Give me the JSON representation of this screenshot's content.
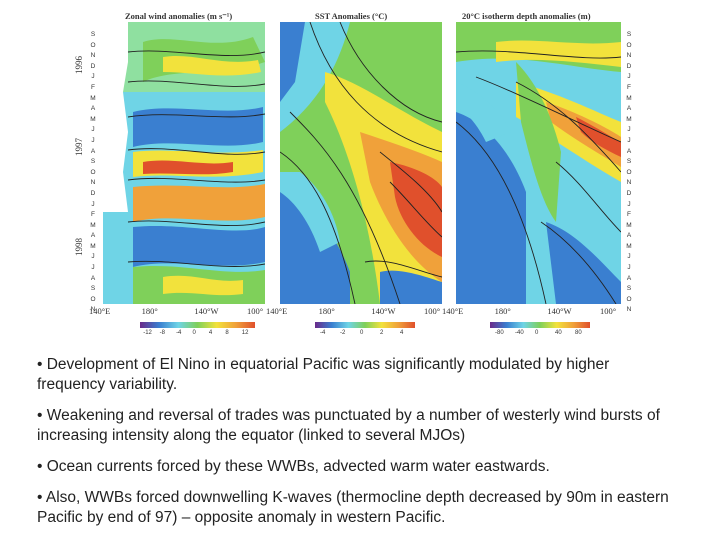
{
  "panels": [
    {
      "title": "Zonal wind anomalies (m s⁻¹)",
      "xticks": [
        "140°E",
        "180°",
        "140°W",
        "100°"
      ],
      "colorbar": [
        "-12",
        "-8",
        "-4",
        "0",
        "4",
        "8",
        "12"
      ]
    },
    {
      "title": "SST Anomalies (°C)",
      "xticks": [
        "140°E",
        "180°",
        "140°W",
        "100°"
      ],
      "colorbar": [
        "-4",
        "-2",
        "0",
        "2",
        "4"
      ]
    },
    {
      "title": "20°C isotherm depth anomalies (m)",
      "xticks": [
        "140°E",
        "180°",
        "140°W",
        "100°"
      ],
      "colorbar": [
        "-80",
        "-40",
        "0",
        "40",
        "80"
      ]
    }
  ],
  "years": [
    "1996",
    "1997",
    "1998"
  ],
  "months": [
    "S",
    "O",
    "N",
    "D",
    "J",
    "F",
    "M",
    "A",
    "M",
    "J",
    "J",
    "A",
    "S",
    "O",
    "N",
    "D",
    "J",
    "F",
    "M",
    "A",
    "M",
    "J",
    "J",
    "A",
    "S",
    "O",
    "N"
  ],
  "colors": {
    "blue": "#3a7fd0",
    "cyan": "#6fd4e6",
    "green": "#7fd05a",
    "yellow": "#f2e23c",
    "orange": "#f0a13a",
    "red": "#e0502c"
  },
  "bullets": [
    "• Development of El Nino in equatorial Pacific was significantly modulated by higher frequency variability.",
    "• Weakening and reversal of trades was punctuated by a number of westerly wind bursts of increasing intensity along the equator (linked to several MJOs)",
    "• Ocean currents forced by these WWBs, advected warm water eastwards.",
    "• Also, WWBs forced downwelling K-waves (thermocline depth decreased by 90m in eastern Pacific by end of 97) – opposite anomaly in western Pacific."
  ]
}
